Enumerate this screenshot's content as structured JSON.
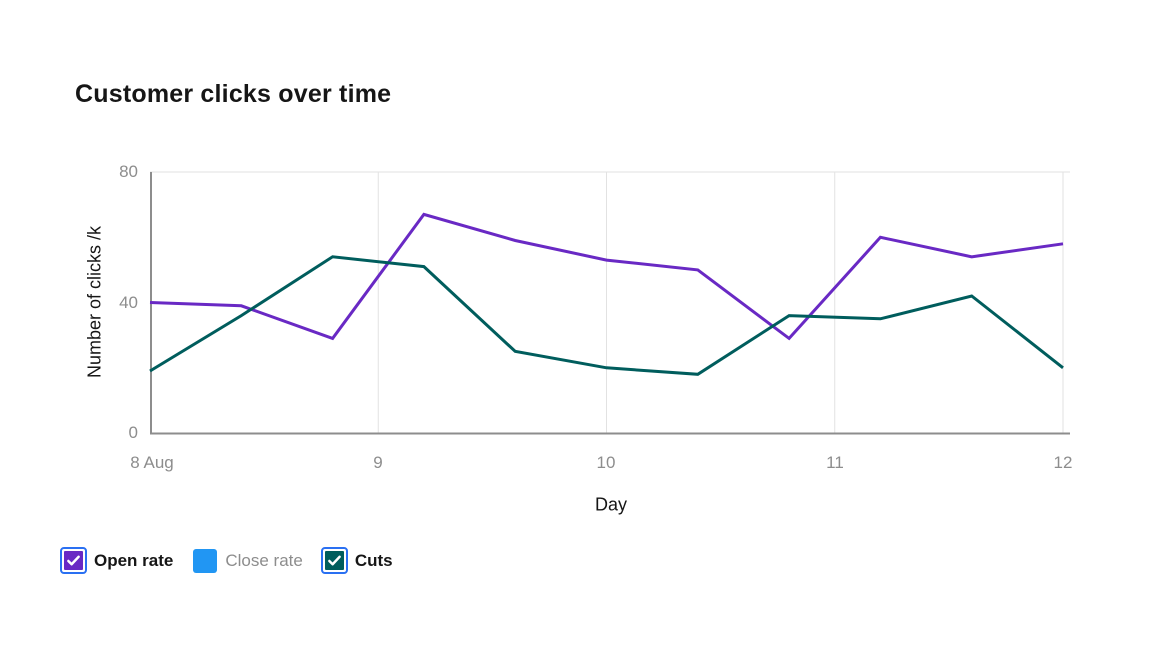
{
  "page": {
    "title": "Customer clicks over time"
  },
  "chart_data": {
    "type": "line",
    "title": "Customer clicks over time",
    "xlabel": "Day",
    "ylabel": "Number of clicks /k",
    "x": [
      8.0,
      8.4,
      8.8,
      9.2,
      9.6,
      10.0,
      10.4,
      10.8,
      11.2,
      11.6,
      12.0
    ],
    "x_tick_labels": [
      "8 Aug",
      "9",
      "10",
      "11",
      "12"
    ],
    "x_tick_positions": [
      8,
      9,
      10,
      11,
      12
    ],
    "y_tick_labels": [
      "80",
      "40",
      "0"
    ],
    "ylim": [
      0,
      80
    ],
    "xlim": [
      8,
      12
    ],
    "grid": "vertical-day-lines plus top line at 80",
    "legend_position": "bottom-left",
    "series": [
      {
        "name": "Open rate",
        "color": "#6929c4",
        "visible": true,
        "values": [
          40,
          39,
          29,
          67,
          59,
          53,
          50,
          29,
          60,
          54,
          58
        ]
      },
      {
        "name": "Close rate",
        "color": "#2196f3",
        "visible": false,
        "values": []
      },
      {
        "name": "Cuts",
        "color": "#005d5d",
        "visible": true,
        "values": [
          19,
          36,
          54,
          51,
          25,
          20,
          18,
          36,
          35,
          42,
          20
        ]
      }
    ]
  },
  "legend": {
    "items": [
      {
        "label": "Open rate",
        "color": "#6929c4",
        "checked": true,
        "active": true
      },
      {
        "label": "Close rate",
        "color": "#2196f3",
        "checked": false,
        "active": false
      },
      {
        "label": "Cuts",
        "color": "#005d5d",
        "checked": true,
        "active": true
      }
    ],
    "checkbox_ring_color": "#2a70f2"
  },
  "colors": {
    "text": "#161616",
    "tick_text": "#8d8d8d",
    "axis_line": "#8d8d8d",
    "grid_line": "#e2e2e2"
  }
}
